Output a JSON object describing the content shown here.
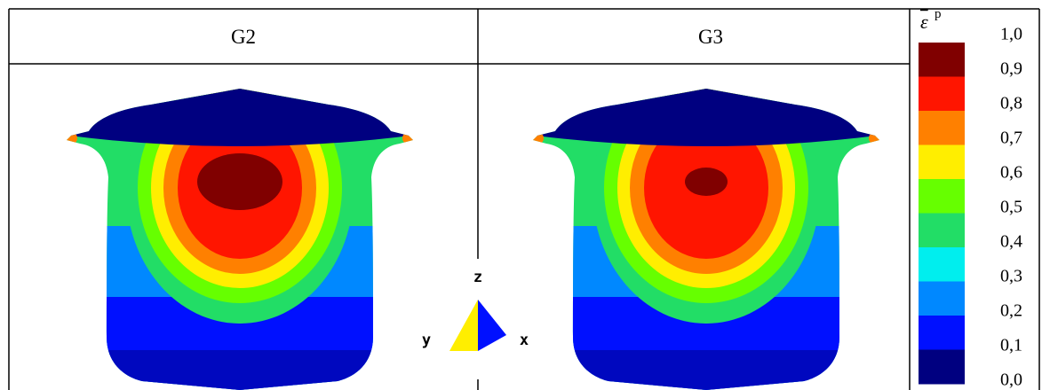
{
  "header": {
    "columns": [
      "G2",
      "G3"
    ]
  },
  "legend": {
    "symbol": "ε",
    "superscript": "p",
    "labels": [
      "1,0",
      "0,9",
      "0,8",
      "0,7",
      "0,6",
      "0,5",
      "0,4",
      "0,3",
      "0,2",
      "0,1",
      "0,0"
    ],
    "colors": [
      "#800000",
      "#ff1500",
      "#ff8000",
      "#ffee00",
      "#66ff00",
      "#22dd66",
      "#00eeee",
      "#0088ff",
      "#0010ff",
      "#000080"
    ]
  },
  "triad": {
    "axes": [
      "z",
      "y",
      "x"
    ]
  }
}
